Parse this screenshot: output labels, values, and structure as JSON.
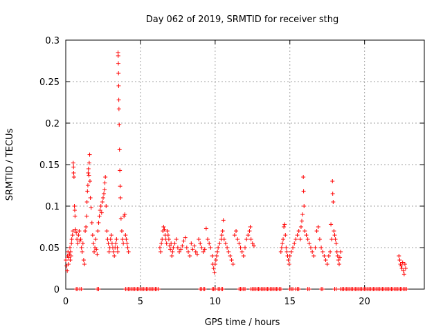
{
  "chart_data": {
    "type": "scatter",
    "title": "Day 062 of 2019, SRMTID for receiver sthg",
    "xlabel": "GPS time / hours",
    "ylabel": "SRMTID / TECUs",
    "xlim": [
      0,
      24
    ],
    "ylim": [
      0,
      0.3
    ],
    "x_ticks": [
      {
        "value": 0,
        "label": "0"
      },
      {
        "value": 5,
        "label": "5"
      },
      {
        "value": 10,
        "label": "10"
      },
      {
        "value": 15,
        "label": "15"
      },
      {
        "value": 20,
        "label": "20"
      }
    ],
    "y_ticks": [
      {
        "value": 0,
        "label": "0"
      },
      {
        "value": 0.05,
        "label": "0.05"
      },
      {
        "value": 0.1,
        "label": "0.1"
      },
      {
        "value": 0.15,
        "label": "0.15"
      },
      {
        "value": 0.2,
        "label": "0.2"
      },
      {
        "value": 0.25,
        "label": "0.25"
      },
      {
        "value": 0.3,
        "label": "0.3"
      }
    ],
    "grid": true,
    "marker": "+",
    "color": "#ff0000",
    "series": [
      {
        "name": "SRMTID",
        "points": [
          [
            0.0,
            0.035
          ],
          [
            0.05,
            0.028
          ],
          [
            0.1,
            0.022
          ],
          [
            0.12,
            0.04
          ],
          [
            0.15,
            0.045
          ],
          [
            0.18,
            0.03
          ],
          [
            0.2,
            0.038
          ],
          [
            0.25,
            0.042
          ],
          [
            0.28,
            0.05
          ],
          [
            0.3,
            0.035
          ],
          [
            0.32,
            0.045
          ],
          [
            0.35,
            0.04
          ],
          [
            0.38,
            0.055
          ],
          [
            0.4,
            0.06
          ],
          [
            0.45,
            0.065
          ],
          [
            0.48,
            0.07
          ],
          [
            0.5,
            0.152
          ],
          [
            0.52,
            0.147
          ],
          [
            0.53,
            0.14
          ],
          [
            0.55,
            0.135
          ],
          [
            0.58,
            0.1
          ],
          [
            0.6,
            0.095
          ],
          [
            0.62,
            0.088
          ],
          [
            0.65,
            0.072
          ],
          [
            0.7,
            0.068
          ],
          [
            0.75,
            0.06
          ],
          [
            0.8,
            0.055
          ],
          [
            0.85,
            0.065
          ],
          [
            0.9,
            0.07
          ],
          [
            0.95,
            0.058
          ],
          [
            1.0,
            0.06
          ],
          [
            1.05,
            0.05
          ],
          [
            1.1,
            0.045
          ],
          [
            1.15,
            0.055
          ],
          [
            1.2,
            0.035
          ],
          [
            1.25,
            0.03
          ],
          [
            1.3,
            0.07
          ],
          [
            1.35,
            0.075
          ],
          [
            1.4,
            0.088
          ],
          [
            1.42,
            0.105
          ],
          [
            1.45,
            0.118
          ],
          [
            1.48,
            0.125
          ],
          [
            1.5,
            0.14
          ],
          [
            1.52,
            0.145
          ],
          [
            1.55,
            0.137
          ],
          [
            1.57,
            0.152
          ],
          [
            1.6,
            0.162
          ],
          [
            1.62,
            0.13
          ],
          [
            1.65,
            0.11
          ],
          [
            1.7,
            0.098
          ],
          [
            1.75,
            0.08
          ],
          [
            1.8,
            0.065
          ],
          [
            1.85,
            0.055
          ],
          [
            1.9,
            0.045
          ],
          [
            1.95,
            0.05
          ],
          [
            2.0,
            0.06
          ],
          [
            2.05,
            0.048
          ],
          [
            2.1,
            0.042
          ],
          [
            2.15,
            0.07
          ],
          [
            2.2,
            0.08
          ],
          [
            2.25,
            0.088
          ],
          [
            2.3,
            0.095
          ],
          [
            2.35,
            0.1
          ],
          [
            2.4,
            0.092
          ],
          [
            2.45,
            0.105
          ],
          [
            2.5,
            0.11
          ],
          [
            2.55,
            0.115
          ],
          [
            2.6,
            0.12
          ],
          [
            2.62,
            0.128
          ],
          [
            2.65,
            0.135
          ],
          [
            2.7,
            0.1
          ],
          [
            2.75,
            0.07
          ],
          [
            2.8,
            0.06
          ],
          [
            2.85,
            0.055
          ],
          [
            2.9,
            0.045
          ],
          [
            2.95,
            0.05
          ],
          [
            3.0,
            0.06
          ],
          [
            3.05,
            0.065
          ],
          [
            3.1,
            0.055
          ],
          [
            3.15,
            0.05
          ],
          [
            3.2,
            0.045
          ],
          [
            3.25,
            0.04
          ],
          [
            3.3,
            0.05
          ],
          [
            3.35,
            0.055
          ],
          [
            3.4,
            0.06
          ],
          [
            3.45,
            0.05
          ],
          [
            3.48,
            0.045
          ],
          [
            3.5,
            0.285
          ],
          [
            3.51,
            0.281
          ],
          [
            3.52,
            0.272
          ],
          [
            3.53,
            0.26
          ],
          [
            3.54,
            0.245
          ],
          [
            3.55,
            0.228
          ],
          [
            3.56,
            0.217
          ],
          [
            3.58,
            0.198
          ],
          [
            3.6,
            0.168
          ],
          [
            3.62,
            0.143
          ],
          [
            3.64,
            0.124
          ],
          [
            3.66,
            0.11
          ],
          [
            3.7,
            0.085
          ],
          [
            3.75,
            0.07
          ],
          [
            3.8,
            0.06
          ],
          [
            3.85,
            0.055
          ],
          [
            3.9,
            0.088
          ],
          [
            3.95,
            0.09
          ],
          [
            4.0,
            0.065
          ],
          [
            4.05,
            0.06
          ],
          [
            4.1,
            0.055
          ],
          [
            4.15,
            0.05
          ],
          [
            4.2,
            0.045
          ],
          [
            6.3,
            0.05
          ],
          [
            6.35,
            0.045
          ],
          [
            6.4,
            0.055
          ],
          [
            6.45,
            0.06
          ],
          [
            6.5,
            0.07
          ],
          [
            6.55,
            0.075
          ],
          [
            6.6,
            0.072
          ],
          [
            6.65,
            0.065
          ],
          [
            6.7,
            0.06
          ],
          [
            6.75,
            0.055
          ],
          [
            6.8,
            0.07
          ],
          [
            6.85,
            0.065
          ],
          [
            6.9,
            0.06
          ],
          [
            6.95,
            0.052
          ],
          [
            7.0,
            0.048
          ],
          [
            7.05,
            0.055
          ],
          [
            7.1,
            0.04
          ],
          [
            7.15,
            0.045
          ],
          [
            7.2,
            0.05
          ],
          [
            7.3,
            0.055
          ],
          [
            7.4,
            0.06
          ],
          [
            7.5,
            0.05
          ],
          [
            7.6,
            0.045
          ],
          [
            7.7,
            0.048
          ],
          [
            7.8,
            0.052
          ],
          [
            7.9,
            0.058
          ],
          [
            8.0,
            0.062
          ],
          [
            8.1,
            0.05
          ],
          [
            8.2,
            0.045
          ],
          [
            8.3,
            0.04
          ],
          [
            8.4,
            0.055
          ],
          [
            8.5,
            0.048
          ],
          [
            8.6,
            0.052
          ],
          [
            8.7,
            0.045
          ],
          [
            8.8,
            0.042
          ],
          [
            8.9,
            0.06
          ],
          [
            9.0,
            0.055
          ],
          [
            9.1,
            0.05
          ],
          [
            9.2,
            0.045
          ],
          [
            9.3,
            0.048
          ],
          [
            9.4,
            0.073
          ],
          [
            9.5,
            0.06
          ],
          [
            9.6,
            0.055
          ],
          [
            9.7,
            0.05
          ],
          [
            9.8,
            0.04
          ],
          [
            9.85,
            0.03
          ],
          [
            9.9,
            0.025
          ],
          [
            9.95,
            0.02
          ],
          [
            10.0,
            0.03
          ],
          [
            10.05,
            0.035
          ],
          [
            10.1,
            0.04
          ],
          [
            10.15,
            0.045
          ],
          [
            10.2,
            0.05
          ],
          [
            10.3,
            0.055
          ],
          [
            10.4,
            0.06
          ],
          [
            10.45,
            0.065
          ],
          [
            10.5,
            0.07
          ],
          [
            10.55,
            0.083
          ],
          [
            10.6,
            0.06
          ],
          [
            10.7,
            0.055
          ],
          [
            10.8,
            0.05
          ],
          [
            10.9,
            0.045
          ],
          [
            11.0,
            0.04
          ],
          [
            11.1,
            0.035
          ],
          [
            11.2,
            0.03
          ],
          [
            11.3,
            0.065
          ],
          [
            11.4,
            0.07
          ],
          [
            11.5,
            0.06
          ],
          [
            11.6,
            0.055
          ],
          [
            11.7,
            0.05
          ],
          [
            11.8,
            0.045
          ],
          [
            11.9,
            0.04
          ],
          [
            12.0,
            0.05
          ],
          [
            12.1,
            0.06
          ],
          [
            12.2,
            0.065
          ],
          [
            12.3,
            0.07
          ],
          [
            12.35,
            0.075
          ],
          [
            12.4,
            0.06
          ],
          [
            12.5,
            0.055
          ],
          [
            12.6,
            0.052
          ],
          [
            14.4,
            0.045
          ],
          [
            14.45,
            0.05
          ],
          [
            14.5,
            0.055
          ],
          [
            14.55,
            0.06
          ],
          [
            14.6,
            0.075
          ],
          [
            14.65,
            0.078
          ],
          [
            14.7,
            0.065
          ],
          [
            14.75,
            0.05
          ],
          [
            14.8,
            0.045
          ],
          [
            14.85,
            0.04
          ],
          [
            14.9,
            0.035
          ],
          [
            14.95,
            0.03
          ],
          [
            15.0,
            0.04
          ],
          [
            15.1,
            0.045
          ],
          [
            15.2,
            0.05
          ],
          [
            15.3,
            0.055
          ],
          [
            15.4,
            0.06
          ],
          [
            15.5,
            0.065
          ],
          [
            15.6,
            0.07
          ],
          [
            15.7,
            0.06
          ],
          [
            15.75,
            0.075
          ],
          [
            15.8,
            0.082
          ],
          [
            15.85,
            0.09
          ],
          [
            15.9,
            0.135
          ],
          [
            15.92,
            0.118
          ],
          [
            15.95,
            0.1
          ],
          [
            16.0,
            0.07
          ],
          [
            16.1,
            0.065
          ],
          [
            16.2,
            0.06
          ],
          [
            16.3,
            0.055
          ],
          [
            16.4,
            0.05
          ],
          [
            16.5,
            0.045
          ],
          [
            16.6,
            0.04
          ],
          [
            16.7,
            0.05
          ],
          [
            16.8,
            0.07
          ],
          [
            16.9,
            0.075
          ],
          [
            17.0,
            0.06
          ],
          [
            17.1,
            0.05
          ],
          [
            17.2,
            0.045
          ],
          [
            17.3,
            0.04
          ],
          [
            17.4,
            0.035
          ],
          [
            17.5,
            0.03
          ],
          [
            17.6,
            0.04
          ],
          [
            17.7,
            0.045
          ],
          [
            17.75,
            0.078
          ],
          [
            17.8,
            0.06
          ],
          [
            17.85,
            0.13
          ],
          [
            17.87,
            0.115
          ],
          [
            17.9,
            0.105
          ],
          [
            17.95,
            0.07
          ],
          [
            18.0,
            0.065
          ],
          [
            18.05,
            0.06
          ],
          [
            18.1,
            0.055
          ],
          [
            18.15,
            0.045
          ],
          [
            18.2,
            0.04
          ],
          [
            18.25,
            0.035
          ],
          [
            18.3,
            0.03
          ],
          [
            18.35,
            0.038
          ],
          [
            18.4,
            0.045
          ],
          [
            22.3,
            0.04
          ],
          [
            22.35,
            0.035
          ],
          [
            22.4,
            0.03
          ],
          [
            22.45,
            0.028
          ],
          [
            22.5,
            0.025
          ],
          [
            22.55,
            0.032
          ],
          [
            22.6,
            0.022
          ],
          [
            22.65,
            0.018
          ],
          [
            22.7,
            0.03
          ],
          [
            22.75,
            0.025
          ]
        ]
      },
      {
        "name": "zero-level",
        "ranges": [
          [
            0.7,
            0.8
          ],
          [
            0.95,
            1.1
          ],
          [
            2.1,
            2.2
          ],
          [
            4.0,
            6.25
          ],
          [
            9.0,
            9.3
          ],
          [
            9.8,
            10.0
          ],
          [
            10.2,
            10.5
          ],
          [
            11.6,
            12.0
          ],
          [
            12.4,
            14.4
          ],
          [
            15.0,
            15.2
          ],
          [
            15.4,
            15.6
          ],
          [
            16.2,
            16.3
          ],
          [
            17.1,
            17.2
          ],
          [
            18.0,
            18.1
          ],
          [
            18.4,
            22.8
          ]
        ]
      }
    ]
  }
}
